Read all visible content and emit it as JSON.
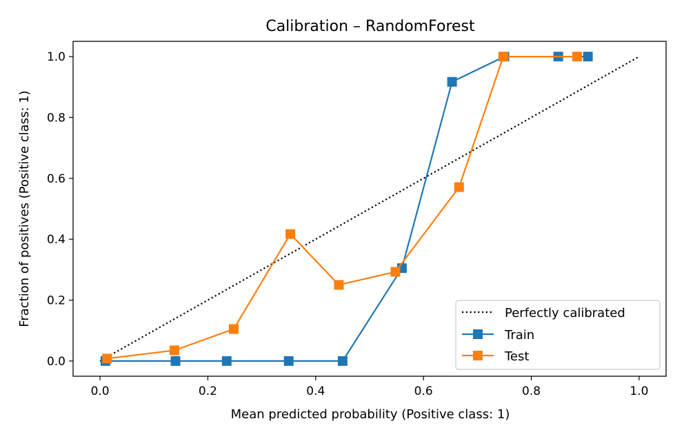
{
  "chart_data": {
    "type": "line",
    "title": "Calibration – RandomForest",
    "xlabel": "Mean predicted probability (Positive class: 1)",
    "ylabel": "Fraction of positives (Positive class: 1)",
    "xlim": [
      -0.05,
      1.05
    ],
    "ylim": [
      -0.05,
      1.05
    ],
    "xticks": [
      "0.0",
      "0.2",
      "0.4",
      "0.6",
      "0.8",
      "1.0"
    ],
    "yticks": [
      "0.0",
      "0.2",
      "0.4",
      "0.6",
      "0.8",
      "1.0"
    ],
    "grid": false,
    "legend_position": "lower-right",
    "reference": {
      "name": "Perfectly calibrated",
      "color": "#000000",
      "style": "dotted",
      "x": [
        0,
        1
      ],
      "y": [
        0,
        1
      ]
    },
    "series": [
      {
        "name": "Train",
        "color": "#1f77b4",
        "marker": "square",
        "x": [
          0.01,
          0.14,
          0.235,
          0.35,
          0.45,
          0.56,
          0.653,
          0.75,
          0.85,
          0.905
        ],
        "y": [
          0.0,
          0.0,
          0.0,
          0.0,
          0.0,
          0.305,
          0.917,
          1.0,
          1.0,
          1.0
        ]
      },
      {
        "name": "Test",
        "color": "#ff7f0e",
        "marker": "square",
        "x": [
          0.013,
          0.138,
          0.248,
          0.353,
          0.443,
          0.548,
          0.666,
          0.748,
          0.885
        ],
        "y": [
          0.008,
          0.035,
          0.105,
          0.417,
          0.25,
          0.293,
          0.571,
          1.0,
          1.0
        ]
      }
    ]
  }
}
